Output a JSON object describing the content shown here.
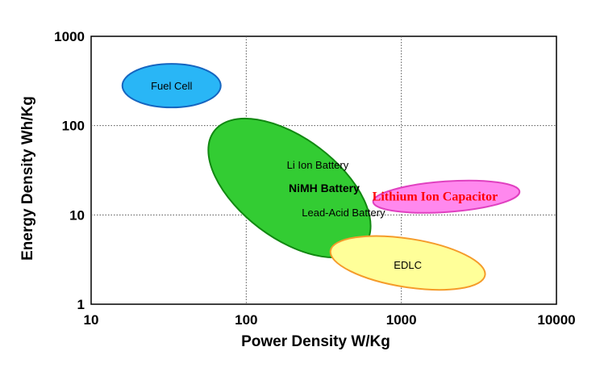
{
  "chart_data": {
    "type": "scatter",
    "title": "",
    "xlabel": "Power Density  W/Kg",
    "ylabel": "Energy Density  Wh/Kg",
    "x_scale": "log",
    "y_scale": "log",
    "xlim": [
      10,
      10000
    ],
    "ylim": [
      1,
      1000
    ],
    "x_ticks": [
      "10",
      "100",
      "1000",
      "10000"
    ],
    "y_ticks": [
      "1",
      "10",
      "100",
      "1000"
    ],
    "grid": true,
    "regions": [
      {
        "name": "fuel-cell",
        "labels": [
          "Fuel Cell"
        ],
        "center": [
          33,
          280
        ],
        "x_extent": [
          19,
          58
        ],
        "y_extent": [
          150,
          520
        ],
        "tilt_deg": 0,
        "fill": "#29b6f6",
        "stroke": "#1565c0"
      },
      {
        "name": "li-ion-nimh-lead-acid",
        "labels": [
          "Li Ion Battery",
          "NiMH Battery",
          "Lead-Acid Battery"
        ],
        "center": [
          190,
          20
        ],
        "x_extent": [
          75,
          900
        ],
        "y_extent": [
          4,
          160
        ],
        "tilt_deg": 37,
        "fill": "#33cc33",
        "stroke": "#118811"
      },
      {
        "name": "lithium-ion-capacitor",
        "labels": [
          "Lithium Ion Capacitor"
        ],
        "center": [
          1950,
          16
        ],
        "x_extent": [
          900,
          7000
        ],
        "y_extent": [
          11,
          21
        ],
        "tilt_deg": -4,
        "fill": "#ff88ee",
        "stroke": "#e040c0"
      },
      {
        "name": "edlc",
        "labels": [
          "EDLC"
        ],
        "center": [
          1100,
          2.9
        ],
        "x_extent": [
          480,
          2900
        ],
        "y_extent": [
          1.5,
          5.4
        ],
        "tilt_deg": 9,
        "fill": "#ffff99",
        "stroke": "#f59b2a"
      }
    ]
  }
}
